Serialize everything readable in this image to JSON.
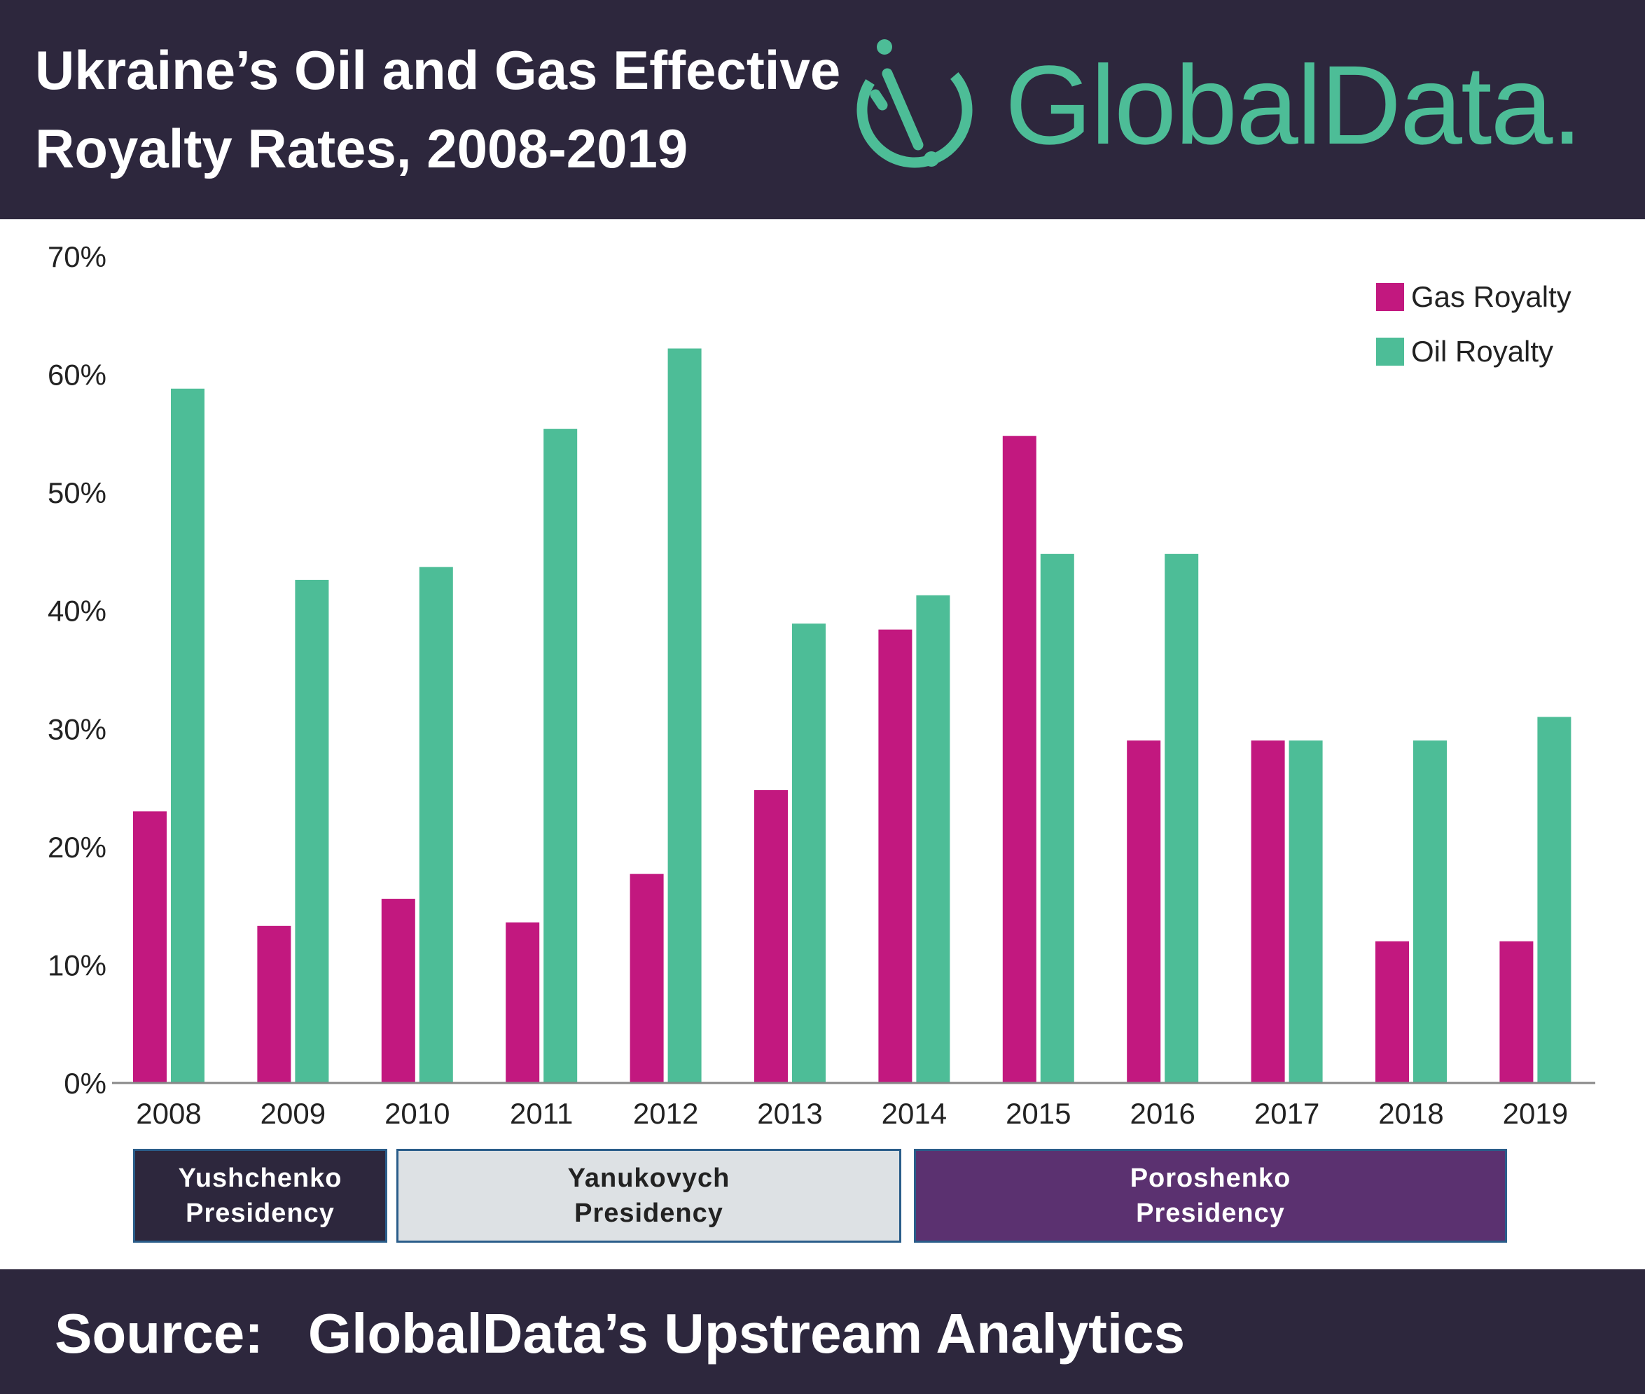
{
  "header": {
    "title_line1": "Ukraine’s Oil and Gas Effective",
    "title_line2": "Royalty Rates, 2008-2019",
    "brand": "GlobalData."
  },
  "colors": {
    "header_bg": "#2d273d",
    "gas": "#c2187f",
    "oil": "#4dbd97",
    "brand": "#4dbd97"
  },
  "chart_data": {
    "type": "bar",
    "categories": [
      "2008",
      "2009",
      "2010",
      "2011",
      "2012",
      "2013",
      "2014",
      "2015",
      "2016",
      "2017",
      "2018",
      "2019"
    ],
    "series": [
      {
        "name": "Gas Royalty",
        "color": "#c2187f",
        "values": [
          23,
          13.3,
          15.6,
          13.6,
          17.7,
          24.8,
          38.4,
          54.8,
          29,
          29,
          12,
          12
        ]
      },
      {
        "name": "Oil Royalty",
        "color": "#4dbd97",
        "values": [
          58.8,
          42.6,
          43.7,
          55.4,
          62.2,
          38.9,
          41.3,
          44.8,
          44.8,
          29,
          29,
          31
        ]
      }
    ],
    "ylim": [
      0,
      70
    ],
    "yticks": [
      "0%",
      "10%",
      "20%",
      "30%",
      "40%",
      "50%",
      "60%",
      "70%"
    ],
    "grid": false,
    "legend_position": "top-right"
  },
  "eras": [
    {
      "line1": "Yushchenko",
      "line2": "Presidency",
      "bg": "#2d273d",
      "fg": "#ffffff"
    },
    {
      "line1": "Yanukovych",
      "line2": "Presidency",
      "bg": "#dde1e4",
      "fg": "#222222"
    },
    {
      "line1": "Poroshenko",
      "line2": "Presidency",
      "bg": "#5b3170",
      "fg": "#ffffff"
    }
  ],
  "footer": {
    "source_label": "Source:",
    "source_text": "GlobalData’s Upstream Analytics"
  }
}
